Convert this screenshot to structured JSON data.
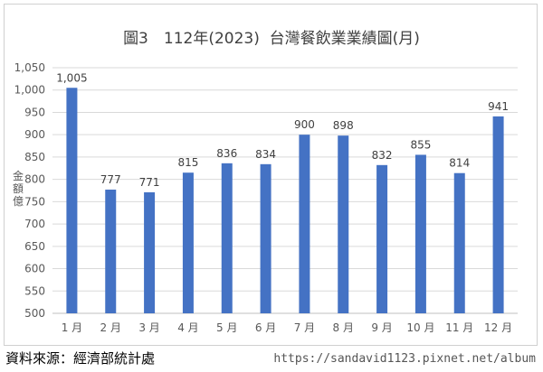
{
  "chart_data": {
    "type": "bar",
    "title": "圖3　112年(2023)  台灣餐飲業業績圖(月)",
    "ylabel": "金額億",
    "categories": [
      "1 月",
      "2 月",
      "3 月",
      "4 月",
      "5 月",
      "6 月",
      "7 月",
      "8 月",
      "9 月",
      "10 月",
      "11 月",
      "12 月"
    ],
    "values": [
      1005,
      777,
      771,
      815,
      836,
      834,
      900,
      898,
      832,
      855,
      814,
      941
    ],
    "data_labels": [
      "1,005",
      "777",
      "771",
      "815",
      "836",
      "834",
      "900",
      "898",
      "832",
      "855",
      "814",
      "941"
    ],
    "yticks": [
      "500",
      "550",
      "600",
      "650",
      "700",
      "750",
      "800",
      "850",
      "900",
      "950",
      "1,000",
      "1,050"
    ],
    "ylim": [
      500,
      1050
    ],
    "grid": true,
    "bar_color": "#4472C4"
  },
  "footer": {
    "source": "資料來源：經濟部統計處",
    "watermark": "https://sandavid1123.pixnet.net/album"
  }
}
